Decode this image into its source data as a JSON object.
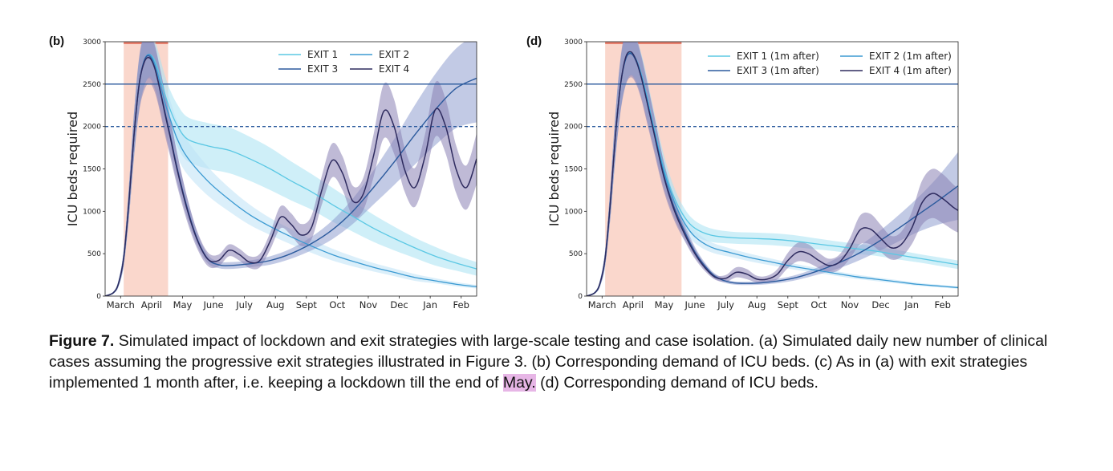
{
  "chart_data": [
    {
      "panel": "(b)",
      "type": "line",
      "ylabel": "ICU beds required",
      "ylim": [
        0,
        3000
      ],
      "yticks": [
        0,
        500,
        1000,
        1500,
        2000,
        2500,
        3000
      ],
      "months": [
        "March",
        "April",
        "May",
        "June",
        "July",
        "Aug",
        "Sept",
        "Oct",
        "Nov",
        "Dec",
        "Jan",
        "Feb"
      ],
      "xlim": [
        0,
        360
      ],
      "month_ticks": [
        15,
        45,
        75,
        105,
        135,
        165,
        195,
        225,
        255,
        285,
        315,
        345
      ],
      "lockdown_window": [
        18,
        61
      ],
      "reference_lines": [
        {
          "value": 2500,
          "style": "solid"
        },
        {
          "value": 2000,
          "style": "dashed"
        }
      ],
      "legend_placement": "top-right",
      "legend_columns": 2,
      "series": [
        {
          "name": "EXIT 1",
          "color": "#5bc8e4",
          "band_color": "#a8e1f3",
          "width": 1.3,
          "x": [
            0,
            8,
            13,
            18,
            23,
            28,
            33,
            38,
            43,
            48,
            53,
            58,
            63,
            70,
            80,
            100,
            120,
            140,
            160,
            180,
            200,
            220,
            240,
            260,
            280,
            300,
            320,
            340,
            360
          ],
          "y": [
            0,
            40,
            150,
            450,
            1100,
            1900,
            2500,
            2780,
            2850,
            2780,
            2600,
            2380,
            2200,
            2010,
            1850,
            1770,
            1720,
            1620,
            1500,
            1360,
            1230,
            1080,
            940,
            800,
            680,
            570,
            470,
            390,
            320
          ],
          "band": [
            0,
            10,
            35,
            90,
            180,
            260,
            300,
            300,
            260,
            240,
            220,
            220,
            230,
            250,
            260,
            270,
            270,
            260,
            250,
            230,
            210,
            200,
            180,
            160,
            140,
            120,
            110,
            90,
            80
          ]
        },
        {
          "name": "EXIT 2",
          "color": "#3b9ad2",
          "band_color": "#bee2f6",
          "width": 1.3,
          "x": [
            0,
            8,
            13,
            18,
            23,
            28,
            33,
            38,
            43,
            48,
            53,
            58,
            63,
            70,
            80,
            100,
            120,
            140,
            160,
            180,
            200,
            220,
            240,
            260,
            280,
            300,
            320,
            340,
            360
          ],
          "y": [
            0,
            40,
            150,
            450,
            1100,
            1900,
            2500,
            2780,
            2850,
            2740,
            2520,
            2280,
            2090,
            1850,
            1630,
            1350,
            1140,
            960,
            820,
            700,
            590,
            490,
            410,
            340,
            280,
            220,
            180,
            140,
            110
          ],
          "band": [
            0,
            10,
            35,
            90,
            180,
            260,
            300,
            300,
            260,
            240,
            220,
            220,
            220,
            210,
            200,
            170,
            140,
            120,
            100,
            90,
            80,
            70,
            60,
            50,
            45,
            40,
            30,
            25,
            20
          ]
        },
        {
          "name": "EXIT 3",
          "color": "#2b5a9d",
          "band_color": "#8f9fd0",
          "width": 1.4,
          "x": [
            0,
            8,
            13,
            18,
            23,
            28,
            33,
            38,
            43,
            48,
            53,
            58,
            63,
            70,
            80,
            90,
            100,
            110,
            120,
            140,
            160,
            180,
            200,
            220,
            240,
            260,
            280,
            300,
            320,
            340,
            360
          ],
          "y": [
            0,
            40,
            150,
            450,
            1100,
            1900,
            2500,
            2780,
            2830,
            2700,
            2450,
            2170,
            1900,
            1500,
            1020,
            650,
            430,
            370,
            360,
            380,
            420,
            500,
            620,
            780,
            1000,
            1280,
            1580,
            1900,
            2200,
            2450,
            2570
          ],
          "band": [
            0,
            10,
            35,
            90,
            180,
            260,
            300,
            300,
            260,
            250,
            240,
            230,
            210,
            170,
            120,
            80,
            50,
            40,
            40,
            40,
            50,
            60,
            80,
            110,
            150,
            200,
            270,
            350,
            420,
            470,
            520
          ]
        },
        {
          "name": "EXIT 4",
          "color": "#2e2b5f",
          "band_color": "#8b82b4",
          "width": 1.5,
          "x": [
            0,
            8,
            13,
            18,
            23,
            28,
            33,
            38,
            43,
            48,
            53,
            58,
            63,
            70,
            80,
            90,
            100,
            110,
            120,
            130,
            140,
            150,
            160,
            170,
            180,
            190,
            200,
            210,
            220,
            230,
            240,
            250,
            260,
            270,
            280,
            290,
            300,
            310,
            320,
            330,
            340,
            350,
            360
          ],
          "y": [
            0,
            40,
            150,
            450,
            1100,
            1900,
            2500,
            2760,
            2810,
            2690,
            2440,
            2150,
            1880,
            1480,
            1000,
            640,
            430,
            420,
            540,
            490,
            400,
            420,
            650,
            930,
            850,
            720,
            810,
            1250,
            1600,
            1450,
            1120,
            1200,
            1650,
            2180,
            2000,
            1500,
            1280,
            1650,
            2200,
            2000,
            1500,
            1280,
            1620
          ],
          "band": [
            0,
            10,
            35,
            90,
            180,
            260,
            320,
            330,
            300,
            280,
            260,
            250,
            230,
            190,
            140,
            100,
            80,
            70,
            70,
            70,
            70,
            80,
            100,
            130,
            130,
            130,
            140,
            170,
            200,
            200,
            180,
            190,
            250,
            320,
            320,
            260,
            230,
            260,
            320,
            320,
            280,
            260,
            300
          ]
        }
      ]
    },
    {
      "panel": "(d)",
      "type": "line",
      "ylabel": "ICU beds required",
      "ylim": [
        0,
        3000
      ],
      "yticks": [
        0,
        500,
        1000,
        1500,
        2000,
        2500,
        3000
      ],
      "months": [
        "March",
        "April",
        "May",
        "June",
        "July",
        "Aug",
        "Sept",
        "Oct",
        "Nov",
        "Dec",
        "Jan",
        "Feb"
      ],
      "xlim": [
        0,
        360
      ],
      "month_ticks": [
        15,
        45,
        75,
        105,
        135,
        165,
        195,
        225,
        255,
        285,
        315,
        345
      ],
      "lockdown_window": [
        18,
        92
      ],
      "reference_lines": [
        {
          "value": 2500,
          "style": "solid"
        },
        {
          "value": 2000,
          "style": "dashed"
        }
      ],
      "legend_placement": "top-right",
      "legend_columns": 2,
      "series": [
        {
          "name": "EXIT 1  (1m after)",
          "color": "#5bc8e4",
          "band_color": "#a8e1f3",
          "width": 1.3,
          "x": [
            0,
            8,
            13,
            18,
            23,
            28,
            33,
            38,
            43,
            48,
            53,
            58,
            65,
            75,
            85,
            95,
            105,
            120,
            140,
            160,
            180,
            200,
            220,
            240,
            260,
            280,
            300,
            320,
            340,
            360
          ],
          "y": [
            0,
            40,
            150,
            450,
            1100,
            1900,
            2500,
            2800,
            2870,
            2790,
            2620,
            2380,
            2000,
            1500,
            1160,
            930,
            800,
            720,
            690,
            680,
            670,
            650,
            620,
            590,
            560,
            530,
            490,
            450,
            410,
            370
          ],
          "band": [
            0,
            10,
            35,
            90,
            180,
            260,
            300,
            300,
            260,
            250,
            240,
            230,
            200,
            160,
            120,
            100,
            90,
            80,
            70,
            70,
            70,
            70,
            65,
            60,
            60,
            55,
            55,
            50,
            50,
            50
          ]
        },
        {
          "name": "EXIT 2  (1m after)",
          "color": "#3b9ad2",
          "band_color": "#bee2f6",
          "width": 1.3,
          "x": [
            0,
            8,
            13,
            18,
            23,
            28,
            33,
            38,
            43,
            48,
            53,
            58,
            65,
            75,
            85,
            95,
            105,
            120,
            140,
            160,
            180,
            200,
            220,
            240,
            260,
            280,
            300,
            320,
            340,
            360
          ],
          "y": [
            0,
            40,
            150,
            450,
            1100,
            1900,
            2500,
            2800,
            2870,
            2790,
            2610,
            2360,
            1980,
            1470,
            1110,
            860,
            700,
            580,
            510,
            450,
            400,
            350,
            310,
            270,
            230,
            200,
            170,
            140,
            120,
            100
          ],
          "band": [
            0,
            10,
            35,
            90,
            180,
            260,
            300,
            300,
            260,
            250,
            240,
            230,
            200,
            160,
            120,
            90,
            75,
            60,
            50,
            45,
            40,
            35,
            30,
            28,
            25,
            22,
            20,
            18,
            16,
            15
          ]
        },
        {
          "name": "EXIT 3  (1m after)",
          "color": "#2b5a9d",
          "band_color": "#8f9fd0",
          "width": 1.4,
          "x": [
            0,
            8,
            13,
            18,
            23,
            28,
            33,
            38,
            43,
            48,
            53,
            58,
            65,
            75,
            85,
            95,
            105,
            115,
            125,
            140,
            160,
            180,
            200,
            220,
            240,
            260,
            280,
            300,
            320,
            340,
            360
          ],
          "y": [
            0,
            40,
            150,
            450,
            1100,
            1900,
            2500,
            2800,
            2860,
            2770,
            2580,
            2320,
            1950,
            1420,
            1040,
            760,
            520,
            350,
            230,
            160,
            150,
            170,
            210,
            280,
            370,
            480,
            620,
            780,
            950,
            1120,
            1300
          ],
          "band": [
            0,
            10,
            35,
            90,
            180,
            260,
            300,
            300,
            260,
            250,
            240,
            230,
            200,
            160,
            120,
            90,
            60,
            40,
            30,
            20,
            20,
            25,
            30,
            40,
            60,
            80,
            110,
            150,
            200,
            280,
            400
          ]
        },
        {
          "name": "EXIT 4  (1m after)",
          "color": "#2e2b5f",
          "band_color": "#8b82b4",
          "width": 1.5,
          "x": [
            0,
            8,
            13,
            18,
            23,
            28,
            33,
            38,
            43,
            48,
            53,
            58,
            65,
            75,
            85,
            95,
            105,
            115,
            125,
            135,
            145,
            155,
            165,
            175,
            185,
            195,
            205,
            215,
            225,
            235,
            245,
            255,
            265,
            275,
            285,
            295,
            305,
            315,
            325,
            335,
            345,
            355,
            360
          ],
          "y": [
            0,
            40,
            150,
            450,
            1100,
            1900,
            2500,
            2820,
            2880,
            2780,
            2580,
            2320,
            1940,
            1400,
            1010,
            730,
            500,
            330,
            220,
            210,
            280,
            260,
            200,
            200,
            260,
            420,
            520,
            500,
            420,
            360,
            400,
            560,
            780,
            790,
            680,
            570,
            610,
            800,
            1100,
            1210,
            1150,
            1050,
            1010
          ],
          "band": [
            0,
            10,
            35,
            90,
            180,
            260,
            320,
            330,
            300,
            280,
            260,
            250,
            220,
            170,
            120,
            80,
            60,
            40,
            30,
            40,
            60,
            60,
            40,
            40,
            60,
            90,
            110,
            110,
            90,
            80,
            90,
            120,
            170,
            180,
            160,
            140,
            150,
            190,
            260,
            290,
            290,
            270,
            260
          ]
        }
      ]
    }
  ],
  "caption": {
    "figure": "Figure 7.",
    "text_main": " Simulated impact of lockdown and exit strategies with large-scale testing and case isolation. (a) Simulated daily new number of clinical cases assuming the progressive exit strategies illustrated in Figure 3. (b) Corresponding demand of ICU beds. (c) As in (a) with exit strategies implemented 1 month after, i.e. keeping a lockdown till the end of ",
    "text_highlight": "May.",
    "text_end": " (d) Corresponding demand of ICU beds."
  },
  "colors": {
    "lockdown_fill": "#fad7cc",
    "lockdown_bar": "#e8806e",
    "reference_line": "#2b5a9d",
    "caption_highlight": "#e7b6e6"
  }
}
